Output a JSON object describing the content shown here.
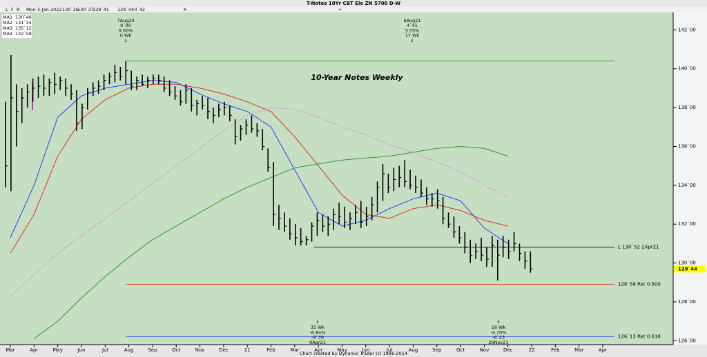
{
  "header": {
    "title": "T-Notes 10Yr CBT Ele ZN 5700 D-W",
    "buttons": [
      "L",
      "F",
      "R"
    ],
    "date": "Mon 3-Jan-2022",
    "quote": [
      "130`26",
      "130`37",
      "129`41"
    ],
    "quote_red": [
      "129`44",
      "-0`42"
    ]
  },
  "chart_data": {
    "type": "ohlc",
    "title": "10-Year Notes Weekly",
    "categories": [
      "Mar",
      "Apr",
      "May",
      "Jun",
      "Jul",
      "Aug",
      "Sep",
      "Oct",
      "Nov",
      "Dec",
      "21",
      "Feb",
      "Mar",
      "Apr",
      "May",
      "Jun",
      "Jul",
      "Aug",
      "Sep",
      "Oct",
      "Nov",
      "Dec",
      "22",
      "Feb",
      "Mar",
      "Apr"
    ],
    "color": "#000000",
    "high": [
      138.3,
      140.7,
      139.2,
      139.0,
      139.2,
      139.5,
      139.6,
      139.7,
      139.5,
      139.8,
      139.6,
      139.5,
      139.2,
      138.9,
      138.2,
      139.0,
      139.3,
      139.4,
      139.7,
      139.8,
      140.2,
      140.1,
      140.4,
      139.9,
      139.6,
      139.7,
      139.6,
      139.7,
      139.7,
      139.6,
      139.4,
      139.1,
      138.9,
      139.2,
      139.0,
      138.4,
      138.6,
      138.5,
      138.0,
      138.2,
      138.3,
      138.1,
      137.4,
      137.1,
      137.4,
      137.6,
      137.2,
      136.9,
      135.9,
      135.2,
      133.0,
      132.6,
      132.3,
      132.0,
      131.8,
      131.4,
      132.1,
      132.6,
      132.5,
      132.4,
      132.8,
      133.1,
      132.9,
      132.6,
      133.0,
      133.2,
      132.9,
      133.4,
      134.2,
      135.1,
      134.6,
      134.9,
      135.0,
      135.3,
      134.8,
      134.5,
      134.3,
      133.9,
      133.6,
      133.8,
      133.4,
      132.6,
      132.4,
      131.9,
      131.6,
      131.2,
      131.0,
      131.3,
      130.8,
      131.4,
      131.2,
      131.4,
      131.2,
      131.6,
      131.0,
      130.6,
      130.6
    ],
    "low": [
      133.9,
      133.7,
      136.0,
      137.2,
      138.0,
      138.3,
      138.5,
      138.6,
      138.6,
      138.7,
      138.9,
      138.6,
      138.4,
      136.8,
      136.9,
      137.9,
      138.6,
      138.7,
      138.9,
      139.2,
      139.3,
      139.4,
      139.2,
      138.9,
      138.9,
      139.1,
      139.0,
      139.2,
      139.2,
      138.8,
      138.6,
      138.4,
      138.1,
      138.2,
      137.8,
      137.6,
      137.9,
      137.4,
      137.2,
      137.5,
      137.6,
      137.3,
      136.1,
      136.3,
      136.6,
      136.7,
      136.5,
      135.8,
      134.7,
      131.9,
      131.7,
      131.6,
      131.2,
      130.9,
      130.9,
      130.9,
      131.1,
      131.4,
      131.6,
      131.4,
      131.7,
      132.0,
      131.8,
      131.7,
      132.0,
      131.8,
      131.9,
      132.2,
      132.6,
      133.2,
      133.6,
      133.7,
      133.9,
      133.9,
      133.8,
      133.6,
      133.4,
      133.0,
      132.9,
      132.8,
      132.0,
      131.8,
      131.3,
      131.0,
      130.5,
      130.0,
      130.2,
      130.1,
      129.8,
      129.8,
      129.1,
      130.3,
      130.2,
      130.6,
      130.1,
      129.7,
      129.5
    ],
    "close": [
      135.0,
      138.5,
      137.8,
      138.5,
      138.8,
      139.0,
      139.1,
      139.0,
      139.3,
      139.2,
      139.4,
      139.0,
      138.7,
      137.2,
      138.0,
      138.8,
      139.0,
      139.1,
      139.4,
      139.6,
      139.8,
      139.6,
      139.9,
      139.1,
      139.4,
      139.2,
      139.4,
      139.5,
      139.4,
      139.0,
      138.8,
      138.6,
      138.3,
      138.9,
      138.1,
      138.2,
      138.1,
      137.8,
      137.6,
      137.9,
      138.0,
      137.6,
      136.5,
      136.9,
      137.1,
      136.9,
      136.8,
      136.0,
      134.9,
      132.5,
      132.3,
      131.9,
      131.5,
      131.3,
      131.1,
      131.2,
      131.9,
      132.2,
      131.9,
      132.0,
      132.5,
      132.4,
      132.1,
      132.3,
      132.6,
      132.1,
      132.4,
      133.0,
      133.9,
      134.6,
      133.9,
      134.3,
      134.4,
      134.2,
      134.0,
      133.9,
      133.6,
      133.3,
      133.3,
      133.2,
      132.3,
      132.0,
      131.6,
      131.3,
      130.8,
      130.4,
      130.6,
      130.4,
      130.2,
      130.9,
      130.4,
      130.8,
      130.6,
      131.0,
      130.5,
      130.1,
      129.7
    ],
    "series": [
      {
        "name": "MA1",
        "label": "130`46",
        "color": "#2040ff",
        "values": [
          131.3,
          134.0,
          137.5,
          138.6,
          139.0,
          139.2,
          139.4,
          139.3,
          138.7,
          138.2,
          137.8,
          137.0,
          134.8,
          132.6,
          131.9,
          132.2,
          132.8,
          133.3,
          133.6,
          133.2,
          131.8,
          131.0,
          null,
          null,
          null,
          null
        ]
      },
      {
        "name": "MA2",
        "label": "131`34",
        "color": "#e03020",
        "values": [
          130.5,
          132.5,
          135.5,
          137.4,
          138.4,
          139.0,
          139.2,
          139.2,
          139.0,
          138.7,
          138.3,
          137.8,
          136.5,
          135.0,
          133.5,
          132.5,
          132.3,
          132.8,
          133.0,
          132.7,
          132.2,
          131.9,
          null,
          null,
          null,
          null
        ]
      },
      {
        "name": "MA3",
        "label": "135`12",
        "color": "#2a9a2a",
        "values": [
          null,
          126.1,
          127.0,
          128.2,
          129.3,
          130.3,
          131.2,
          131.9,
          132.6,
          133.3,
          133.9,
          134.4,
          134.9,
          135.1,
          135.3,
          135.4,
          135.5,
          135.7,
          135.9,
          136.0,
          135.9,
          135.5,
          null,
          null,
          null,
          null
        ]
      },
      {
        "name": "MA4",
        "label": "132`58",
        "color": "#e070e0",
        "dashed": true,
        "values": [
          128.3,
          129.4,
          130.5,
          131.4,
          132.3,
          133.2,
          134.1,
          135.0,
          135.9,
          136.8,
          137.6,
          138.0,
          137.9,
          137.5,
          137.0,
          136.6,
          136.1,
          135.7,
          135.2,
          134.7,
          134.0,
          133.4,
          null,
          null,
          null,
          null
        ]
      }
    ],
    "ylim": [
      125.8,
      142.9
    ],
    "yticks": [
      {
        "value": 142,
        "label": "142`00"
      },
      {
        "value": 140,
        "label": "140`00"
      },
      {
        "value": 138,
        "label": "138`00"
      },
      {
        "value": 136,
        "label": "136`00"
      },
      {
        "value": 134,
        "label": "134`00"
      },
      {
        "value": 132,
        "label": "132`00"
      },
      {
        "value": 130,
        "label": "130`00"
      },
      {
        "value": 128,
        "label": "128`00"
      },
      {
        "value": 126,
        "label": "126`00"
      }
    ],
    "last": {
      "value": 129.6875,
      "label": "129`44",
      "color": "#ffff00"
    },
    "levels": [
      {
        "value": 140.40625,
        "color": "#2a9a2a"
      },
      {
        "value": 130.8125,
        "label": "L 130`52 2Apr21",
        "color": "#000000"
      },
      {
        "value": 128.90625,
        "label": "128`58 Ret 0.500",
        "color": "#e03020"
      },
      {
        "value": 126.203125,
        "label": "126`13 Ret 0.618",
        "color": "#2040ff"
      }
    ],
    "annotations": [
      {
        "lines": [
          "7Aug20",
          "0`00",
          "0.00%",
          "0 Wk",
          "↓"
        ]
      },
      {
        "lines": [
          "6Aug21",
          "4`41",
          "3.55%",
          "17 Wk",
          "↓"
        ]
      },
      {
        "lines": [
          "↑",
          "35 Wk",
          "-6.84%",
          "-9`39",
          "9Apr21"
        ]
      },
      {
        "lines": [
          "↑",
          "16 Wk",
          "-4.70%",
          "-6`23",
          "26Nov21"
        ]
      }
    ]
  },
  "footer": "Chart created by Dynamic Trader  (c) 1996-2014"
}
